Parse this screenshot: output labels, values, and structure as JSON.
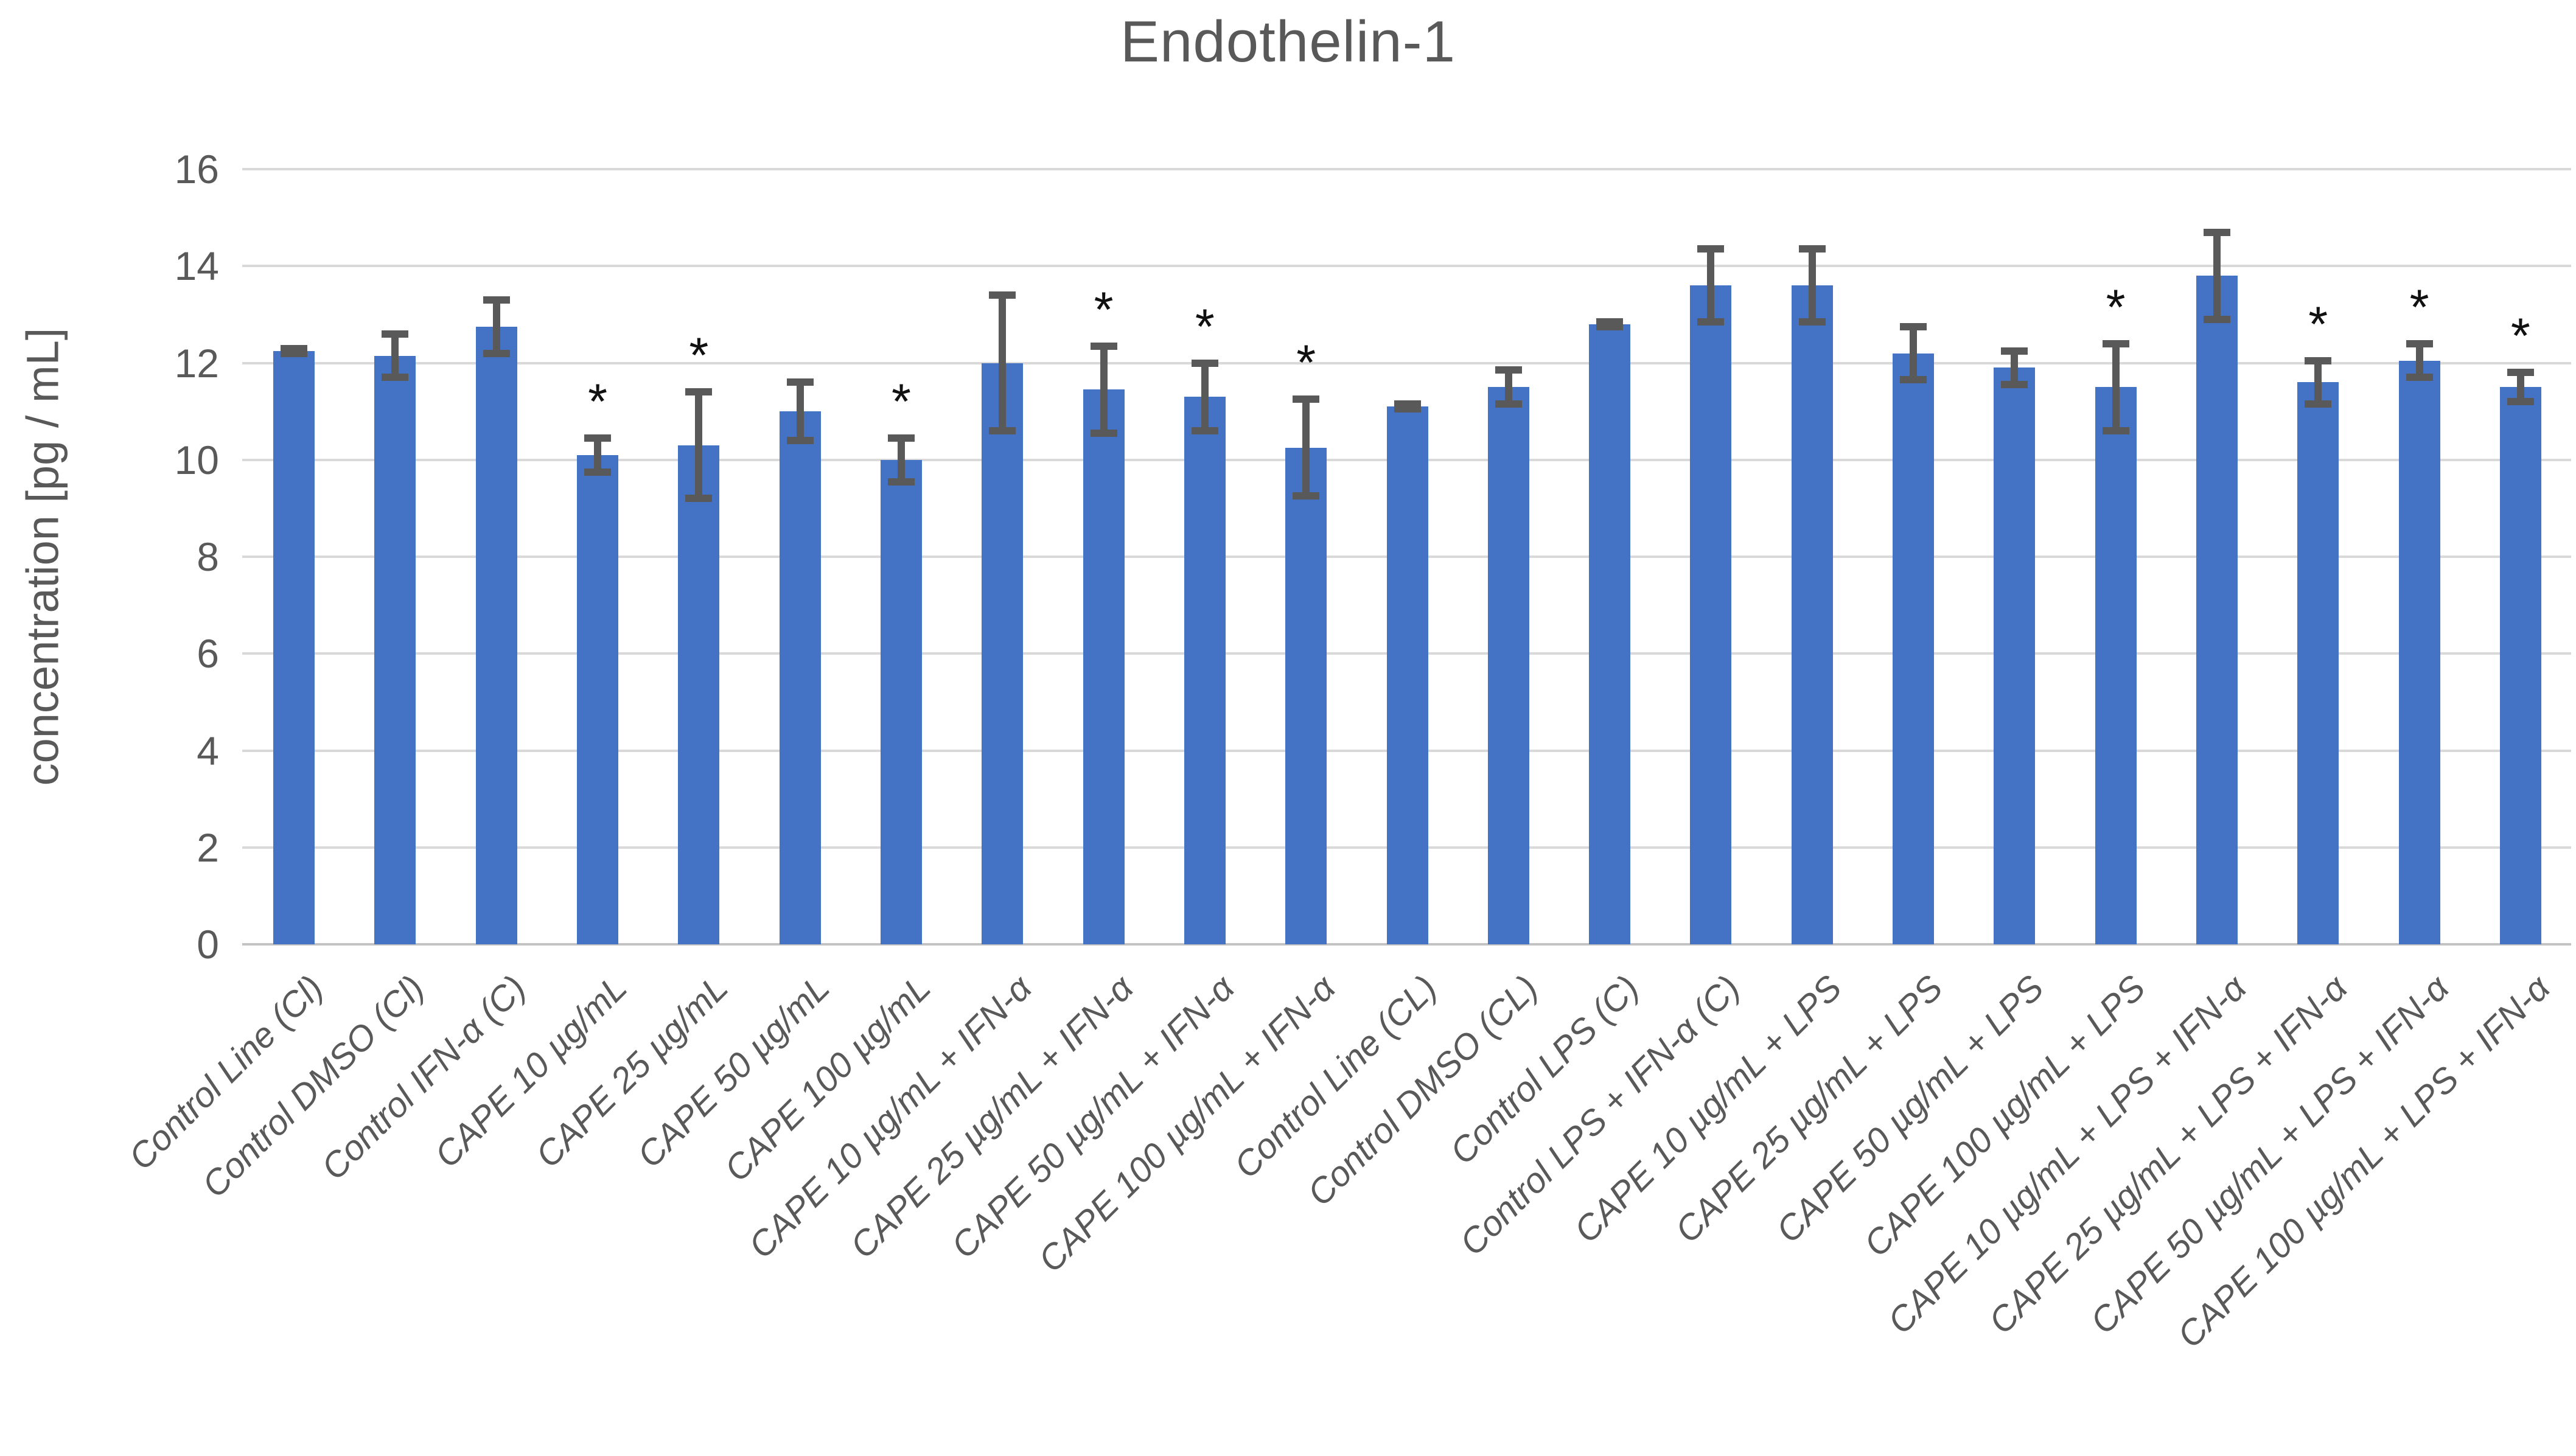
{
  "chart_data": {
    "type": "bar",
    "title": "Endothelin-1",
    "ylabel": "concentration [pg / mL]",
    "xlabel": "",
    "ylim": [
      0,
      16
    ],
    "ytick_step": 2,
    "yticks": [
      0,
      2,
      4,
      6,
      8,
      10,
      12,
      14,
      16
    ],
    "grid": true,
    "legend_position": "none",
    "bar_color": "#4472C4",
    "error_bar_color": "#595959",
    "gridline_color": "#D9D9D9",
    "axis_text_color": "#595959",
    "significance_marker": "*",
    "categories": [
      "Control Line (Cl)",
      "Control DMSO (Cl)",
      "Control IFN-α (C)",
      "CAPE 10 µg/mL",
      "CAPE 25 µg/mL",
      "CAPE 50 µg/mL",
      "CAPE 100 µg/mL",
      "CAPE 10 µg/mL + IFN-α",
      "CAPE 25 µg/mL + IFN-α",
      "CAPE 50 µg/mL + IFN-α",
      "CAPE 100 µg/mL + IFN-α",
      "Control Line (CL)",
      "Control DMSO (CL)",
      "Control LPS (C)",
      "Control LPS + IFN-α (C)",
      "CAPE 10 µg/mL + LPS",
      "CAPE 25 µg/mL + LPS",
      "CAPE 50 µg/mL + LPS",
      "CAPE 100 µg/mL + LPS",
      "CAPE 10 µg/mL + LPS + IFN-α",
      "CAPE 25 µg/mL + LPS + IFN-α",
      "CAPE 50 µg/mL + LPS + IFN-α",
      "CAPE 100 µg/mL + LPS + IFN-α"
    ],
    "series": [
      {
        "name": "Endothelin-1",
        "values": [
          12.25,
          12.15,
          12.75,
          10.1,
          10.3,
          11.0,
          10.0,
          12.0,
          11.45,
          11.3,
          10.25,
          11.1,
          11.5,
          12.8,
          13.6,
          13.6,
          12.2,
          11.9,
          11.5,
          13.8,
          11.6,
          12.05,
          11.5
        ],
        "errors": [
          0.05,
          0.45,
          0.55,
          0.35,
          1.1,
          0.6,
          0.45,
          1.4,
          0.9,
          0.7,
          1.0,
          0.05,
          0.35,
          0.05,
          0.75,
          0.75,
          0.55,
          0.35,
          0.9,
          0.9,
          0.45,
          0.35,
          0.3
        ],
        "significant": [
          false,
          false,
          false,
          true,
          true,
          false,
          true,
          false,
          true,
          true,
          true,
          false,
          false,
          false,
          false,
          false,
          false,
          false,
          true,
          false,
          true,
          true,
          true
        ]
      }
    ]
  }
}
